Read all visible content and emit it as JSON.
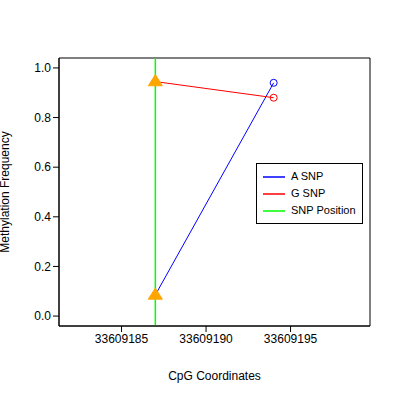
{
  "chart_data": {
    "type": "line",
    "x_label": "CpG Coordinates",
    "y_label": "Methylation Frequency",
    "xlim": [
      33609181.3,
      33609199.7
    ],
    "xticks": [
      33609185,
      33609190,
      33609195
    ],
    "ylim": [
      -0.04,
      1.04
    ],
    "yticks": [
      {
        "value": 0,
        "label": "0.0"
      },
      0.2,
      0.4,
      0.6,
      0.8,
      {
        "value": 1,
        "label": "1.0"
      }
    ],
    "x": [
      33609187,
      33609194
    ],
    "series": [
      {
        "name": "A SNP",
        "color": "#0000ff",
        "values": [
          0.085,
          0.94
        ]
      },
      {
        "name": "G SNP",
        "color": "#ff0000",
        "values": [
          0.945,
          0.88
        ]
      }
    ],
    "snp_position": {
      "name": "SNP Position",
      "color": "#00ff00",
      "x": 33609187
    },
    "legend": "right"
  }
}
